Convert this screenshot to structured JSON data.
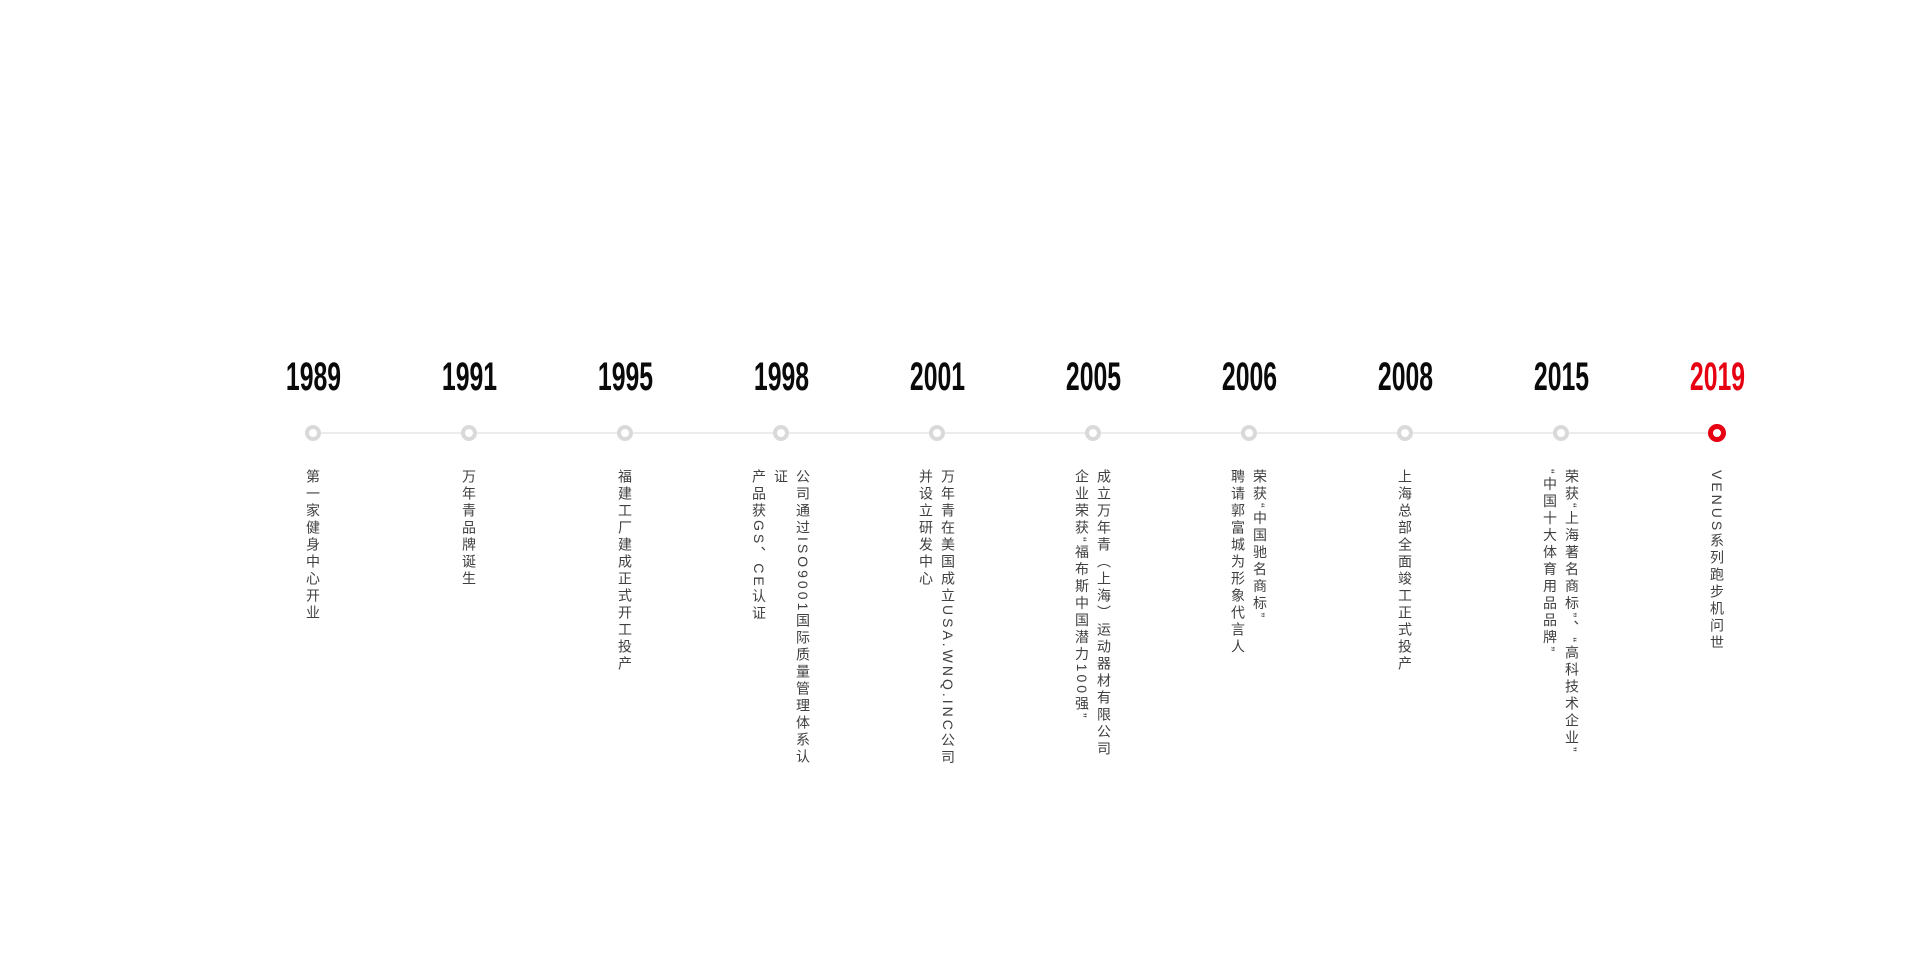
{
  "page": {
    "background": "#ffffff"
  },
  "timeline": {
    "accent_color": "#e60012",
    "axis_line_color": "#ececec",
    "ring_color": "#d9d9d9",
    "text_color": "#404040",
    "year_color": "#0a0a0a",
    "events": [
      {
        "year": "1989",
        "highlight": false,
        "lines": [
          "第一家健身中心开业"
        ]
      },
      {
        "year": "1991",
        "highlight": false,
        "lines": [
          "万年青品牌诞生"
        ]
      },
      {
        "year": "1995",
        "highlight": false,
        "lines": [
          "福建工厂建成正式开工投产"
        ]
      },
      {
        "year": "1998",
        "highlight": false,
        "lines": [
          "公司通过ISO9001国际质量管理体系认证",
          "产品获GS、CE认证"
        ]
      },
      {
        "year": "2001",
        "highlight": false,
        "lines": [
          "万年青在美国成立USA.WNQ.INC公司",
          "并设立研发中心"
        ]
      },
      {
        "year": "2005",
        "highlight": false,
        "lines": [
          "成立万年青（上海）运动器材有限公司",
          "企业荣获“福布斯中国潜力100强”"
        ]
      },
      {
        "year": "2006",
        "highlight": false,
        "lines": [
          "荣获“中国驰名商标”",
          "聘请郭富城为形象代言人"
        ]
      },
      {
        "year": "2008",
        "highlight": false,
        "lines": [
          "上海总部全面竣工正式投产"
        ]
      },
      {
        "year": "2015",
        "highlight": false,
        "lines": [
          "荣获“上海著名商标”、“高科技术企业”",
          "“中国十大体育用品品牌”"
        ]
      },
      {
        "year": "2019",
        "highlight": true,
        "lines": [
          "VENUS系列跑步机问世"
        ]
      }
    ]
  }
}
